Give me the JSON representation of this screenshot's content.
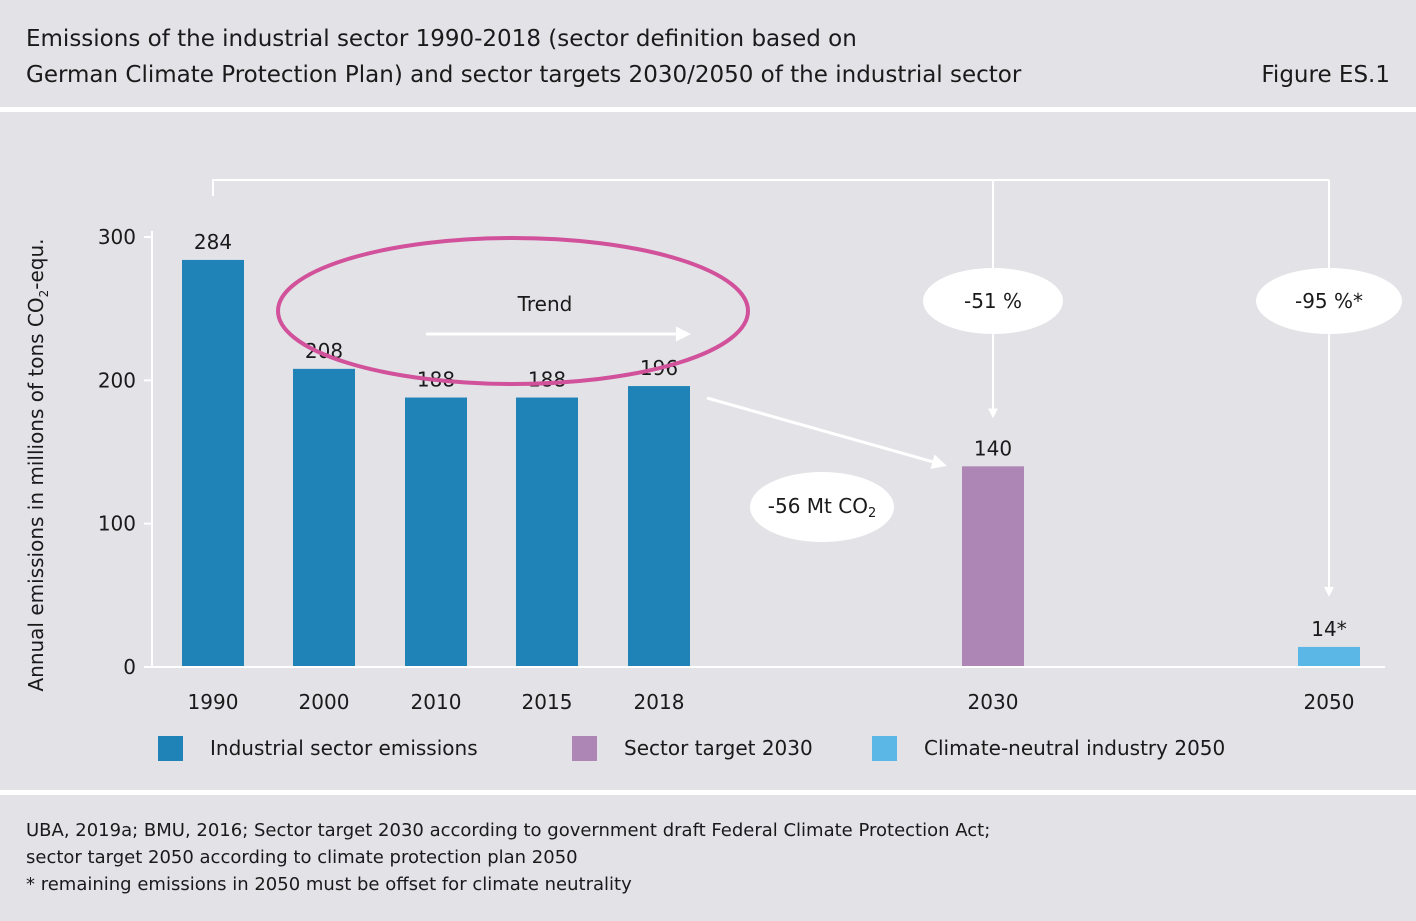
{
  "header": {
    "title_line1": "Emissions of the industrial sector 1990-2018 (sector definition based on",
    "title_line2": "German Climate Protection Plan) and sector targets 2030/2050 of the industrial sector",
    "figure_id": "Figure ES.1"
  },
  "chart_data": {
    "type": "bar",
    "ylabel_main": "Annual emissions in millions of tons CO",
    "ylabel_sub": "2",
    "ylabel_tail": "-equ.",
    "ylim": [
      0,
      300
    ],
    "yticks": [
      0,
      100,
      200,
      300
    ],
    "grid": false,
    "categories": [
      "1990",
      "2000",
      "2010",
      "2015",
      "2018",
      "2030",
      "2050"
    ],
    "values": [
      284,
      208,
      188,
      188,
      196,
      140,
      14
    ],
    "value_labels": [
      "284",
      "208",
      "188",
      "188",
      "196",
      "140",
      "14*"
    ],
    "series_index": [
      0,
      0,
      0,
      0,
      0,
      1,
      2
    ],
    "series": [
      {
        "name": "Industrial sector emissions",
        "color": "#1f83b8"
      },
      {
        "name": "Sector target 2030",
        "color": "#ae86b5"
      },
      {
        "name": "Climate-neutral industry 2050",
        "color": "#5bb7e6"
      }
    ],
    "annotations": {
      "trend": "Trend",
      "reduction_2030": "-51 %",
      "reduction_2050": "-95 %*",
      "gap_main": "-56 Mt CO",
      "gap_sub": "2"
    },
    "ellipse_color": "#d2519b",
    "legend_position": "bottom"
  },
  "footer": {
    "line1": "UBA, 2019a; BMU, 2016; Sector target 2030 according to government draft Federal Climate Protection Act;",
    "line2": "sector target 2050 according to climate protection plan 2050",
    "line3": "* remaining emissions in 2050 must be offset for climate neutrality"
  }
}
